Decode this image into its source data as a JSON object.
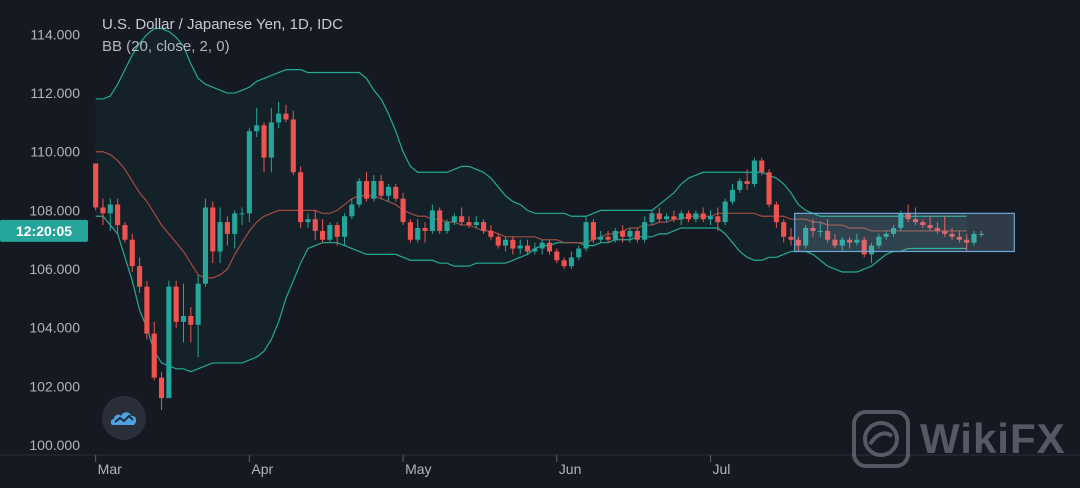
{
  "legend": {
    "title": "U.S. Dollar / Japanese Yen, 1D, IDC",
    "indicator": "BB (20, close, 2, 0)"
  },
  "price_label": "12:20:05",
  "watermark": {
    "text": "WikiFX",
    "icon": "wikifx-logo-icon"
  },
  "logo_icon": "tradingview-cloud-icon",
  "colors": {
    "background": "#151922",
    "up": "#26a69a",
    "down": "#ef5350",
    "band": "#22ab94",
    "basis": "#a24c3f",
    "band_fill": "rgba(34,171,148,0.06)",
    "rect_fill": "rgba(140,185,210,0.22)",
    "rect_stroke": "#6ea8d8",
    "axis_text": "#b2b5be",
    "price_label_bg": "#26a69a"
  },
  "chart_data": {
    "type": "candlestick",
    "title": "U.S. Dollar / Japanese Yen, 1D, IDC",
    "y_ticks": [
      "114.000",
      "112.000",
      "110.000",
      "108.000",
      "106.000",
      "104.000",
      "102.000",
      "100.000"
    ],
    "ylim": [
      99.9,
      114.9
    ],
    "x_labels": [
      "Mar",
      "Apr",
      "May",
      "Jun",
      "Jul"
    ],
    "x_label_index": [
      0,
      21,
      42,
      63,
      84
    ],
    "grid": false,
    "candles": [
      [
        109.6,
        109.6,
        108.0,
        108.1
      ],
      [
        108.1,
        108.4,
        107.5,
        107.9
      ],
      [
        107.9,
        108.4,
        107.3,
        108.2
      ],
      [
        108.2,
        108.4,
        107.2,
        107.5
      ],
      [
        107.5,
        107.6,
        106.9,
        107.0
      ],
      [
        107.0,
        107.2,
        105.9,
        106.1
      ],
      [
        106.1,
        106.4,
        105.2,
        105.4
      ],
      [
        105.4,
        105.6,
        103.6,
        103.8
      ],
      [
        103.8,
        104.2,
        102.2,
        102.3
      ],
      [
        102.3,
        102.5,
        101.2,
        101.6
      ],
      [
        101.6,
        105.6,
        101.6,
        105.4
      ],
      [
        105.4,
        105.6,
        104.0,
        104.2
      ],
      [
        104.2,
        105.5,
        103.5,
        104.4
      ],
      [
        104.4,
        104.7,
        103.5,
        104.1
      ],
      [
        104.1,
        105.8,
        103.0,
        105.5
      ],
      [
        105.5,
        108.4,
        105.4,
        108.1
      ],
      [
        108.1,
        108.3,
        106.2,
        106.6
      ],
      [
        106.6,
        108.1,
        106.2,
        107.6
      ],
      [
        107.6,
        107.8,
        106.8,
        107.2
      ],
      [
        107.2,
        108.0,
        106.7,
        107.9
      ],
      [
        107.9,
        108.1,
        107.5,
        107.9
      ],
      [
        107.9,
        110.8,
        107.6,
        110.7
      ],
      [
        110.7,
        111.5,
        110.5,
        110.9
      ],
      [
        110.9,
        111.0,
        109.3,
        109.8
      ],
      [
        109.8,
        111.5,
        109.3,
        111.0
      ],
      [
        111.0,
        111.7,
        110.8,
        111.3
      ],
      [
        111.3,
        111.6,
        111.0,
        111.1
      ],
      [
        111.1,
        111.4,
        109.2,
        109.3
      ],
      [
        109.3,
        109.5,
        107.4,
        107.6
      ],
      [
        107.6,
        107.9,
        107.4,
        107.7
      ],
      [
        107.7,
        108.0,
        107.0,
        107.3
      ],
      [
        107.3,
        107.7,
        106.9,
        107.0
      ],
      [
        107.0,
        107.6,
        106.9,
        107.5
      ],
      [
        107.5,
        107.6,
        106.8,
        107.1
      ],
      [
        107.1,
        107.9,
        106.8,
        107.8
      ],
      [
        107.8,
        108.4,
        107.7,
        108.2
      ],
      [
        108.2,
        109.1,
        108.1,
        109.0
      ],
      [
        109.0,
        109.3,
        108.3,
        108.4
      ],
      [
        108.4,
        109.2,
        108.3,
        109.0
      ],
      [
        109.0,
        109.2,
        108.4,
        108.5
      ],
      [
        108.5,
        108.9,
        108.3,
        108.8
      ],
      [
        108.8,
        108.9,
        108.3,
        108.4
      ],
      [
        108.4,
        108.6,
        107.5,
        107.6
      ],
      [
        107.6,
        107.7,
        106.9,
        107.0
      ],
      [
        107.0,
        107.7,
        106.9,
        107.4
      ],
      [
        107.4,
        107.6,
        106.9,
        107.3
      ],
      [
        107.3,
        108.2,
        107.2,
        108.0
      ],
      [
        108.0,
        108.1,
        107.2,
        107.3
      ],
      [
        107.3,
        107.7,
        107.2,
        107.6
      ],
      [
        107.6,
        107.9,
        107.5,
        107.8
      ],
      [
        107.8,
        108.1,
        107.5,
        107.6
      ],
      [
        107.6,
        107.8,
        107.4,
        107.5
      ],
      [
        107.5,
        107.8,
        107.4,
        107.6
      ],
      [
        107.6,
        107.7,
        107.2,
        107.3
      ],
      [
        107.3,
        107.5,
        107.0,
        107.1
      ],
      [
        107.1,
        107.2,
        106.7,
        106.8
      ],
      [
        106.8,
        107.1,
        106.6,
        107.0
      ],
      [
        107.0,
        107.1,
        106.5,
        106.7
      ],
      [
        106.7,
        107.0,
        106.5,
        106.8
      ],
      [
        106.8,
        107.0,
        106.5,
        106.6
      ],
      [
        106.6,
        106.9,
        106.5,
        106.7
      ],
      [
        106.7,
        107.0,
        106.5,
        106.9
      ],
      [
        106.9,
        107.0,
        106.5,
        106.6
      ],
      [
        106.6,
        106.7,
        106.2,
        106.3
      ],
      [
        106.3,
        106.4,
        106.0,
        106.1
      ],
      [
        106.1,
        106.6,
        106.0,
        106.4
      ],
      [
        106.4,
        106.8,
        106.3,
        106.7
      ],
      [
        106.7,
        107.8,
        106.6,
        107.6
      ],
      [
        107.6,
        107.7,
        106.9,
        107.0
      ],
      [
        107.0,
        107.3,
        106.9,
        107.1
      ],
      [
        107.1,
        107.3,
        106.9,
        107.0
      ],
      [
        107.0,
        107.4,
        106.9,
        107.3
      ],
      [
        107.3,
        107.5,
        106.9,
        107.1
      ],
      [
        107.1,
        107.4,
        106.9,
        107.3
      ],
      [
        107.3,
        107.4,
        106.9,
        107.0
      ],
      [
        107.0,
        107.8,
        106.9,
        107.6
      ],
      [
        107.6,
        108.0,
        107.5,
        107.9
      ],
      [
        107.9,
        108.1,
        107.6,
        107.7
      ],
      [
        107.7,
        107.9,
        107.6,
        107.8
      ],
      [
        107.8,
        108.0,
        107.6,
        107.7
      ],
      [
        107.7,
        108.0,
        107.5,
        107.9
      ],
      [
        107.9,
        108.0,
        107.6,
        107.7
      ],
      [
        107.7,
        108.0,
        107.6,
        107.9
      ],
      [
        107.9,
        108.1,
        107.6,
        107.7
      ],
      [
        107.7,
        108.0,
        107.5,
        107.8
      ],
      [
        107.8,
        108.1,
        107.3,
        107.6
      ],
      [
        107.6,
        108.4,
        107.5,
        108.3
      ],
      [
        108.3,
        108.9,
        108.2,
        108.7
      ],
      [
        108.7,
        109.1,
        108.6,
        109.0
      ],
      [
        109.0,
        109.4,
        108.7,
        108.9
      ],
      [
        108.9,
        109.8,
        108.8,
        109.7
      ],
      [
        109.7,
        109.8,
        109.2,
        109.3
      ],
      [
        109.3,
        109.4,
        108.1,
        108.2
      ],
      [
        108.2,
        108.3,
        107.4,
        107.6
      ],
      [
        107.6,
        107.7,
        106.9,
        107.1
      ],
      [
        107.1,
        107.4,
        106.8,
        107.0
      ],
      [
        107.0,
        107.1,
        106.6,
        106.8
      ],
      [
        106.8,
        107.5,
        106.7,
        107.4
      ],
      [
        107.4,
        107.7,
        107.1,
        107.3
      ],
      [
        107.3,
        107.6,
        107.1,
        107.3
      ],
      [
        107.3,
        107.7,
        106.9,
        107.0
      ],
      [
        107.0,
        107.2,
        106.7,
        106.8
      ],
      [
        106.8,
        107.1,
        106.6,
        107.0
      ],
      [
        107.0,
        107.1,
        106.7,
        106.9
      ],
      [
        106.9,
        107.2,
        106.8,
        107.0
      ],
      [
        107.0,
        107.1,
        106.4,
        106.5
      ],
      [
        106.5,
        106.9,
        106.2,
        106.8
      ],
      [
        106.8,
        107.2,
        106.7,
        107.1
      ],
      [
        107.1,
        107.3,
        107.0,
        107.2
      ],
      [
        107.2,
        107.5,
        107.1,
        107.4
      ],
      [
        107.4,
        108.0,
        107.3,
        107.9
      ],
      [
        107.9,
        108.2,
        107.6,
        107.7
      ],
      [
        107.7,
        108.1,
        107.5,
        107.6
      ],
      [
        107.6,
        107.7,
        107.4,
        107.5
      ],
      [
        107.5,
        107.8,
        107.3,
        107.4
      ],
      [
        107.4,
        107.6,
        107.2,
        107.3
      ],
      [
        107.3,
        107.8,
        107.1,
        107.2
      ],
      [
        107.2,
        107.4,
        107.0,
        107.1
      ],
      [
        107.1,
        107.3,
        106.9,
        107.0
      ],
      [
        107.0,
        107.2,
        106.6,
        106.9
      ],
      [
        106.9,
        107.3,
        106.8,
        107.2
      ],
      [
        107.2,
        107.3,
        107.1,
        107.2
      ]
    ],
    "bollinger": {
      "period": 20,
      "stddev": 2,
      "upper": [
        111.8,
        111.8,
        111.9,
        112.3,
        112.8,
        113.3,
        113.7,
        114.0,
        114.2,
        114.2,
        114.1,
        113.9,
        113.6,
        113.0,
        112.5,
        112.3,
        112.2,
        112.1,
        112.0,
        112.0,
        112.1,
        112.2,
        112.4,
        112.5,
        112.6,
        112.7,
        112.8,
        112.8,
        112.8,
        112.7,
        112.7,
        112.7,
        112.7,
        112.7,
        112.7,
        112.7,
        112.7,
        112.5,
        112.1,
        111.8,
        111.3,
        110.7,
        110.0,
        109.5,
        109.3,
        109.3,
        109.3,
        109.3,
        109.3,
        109.4,
        109.5,
        109.5,
        109.4,
        109.3,
        109.1,
        108.8,
        108.5,
        108.3,
        108.2,
        108.0,
        107.9,
        107.9,
        107.9,
        107.9,
        107.9,
        107.8,
        107.8,
        107.8,
        107.9,
        108.0,
        108.0,
        108.0,
        108.0,
        108.0,
        108.0,
        108.0,
        108.0,
        108.2,
        108.4,
        108.6,
        108.9,
        109.1,
        109.2,
        109.3,
        109.3,
        109.3,
        109.3,
        109.3,
        109.3,
        109.3,
        109.3,
        109.3,
        109.2,
        109.1,
        108.9,
        108.6,
        108.2,
        108.0,
        107.9,
        107.8,
        107.8,
        107.8,
        107.8,
        107.8,
        107.8,
        107.8,
        107.8,
        107.8,
        107.8,
        107.8,
        107.8,
        107.8,
        107.8,
        107.8,
        107.8,
        107.8,
        107.8,
        107.8,
        107.8,
        107.8
      ],
      "basis": [
        110.0,
        110.0,
        109.9,
        109.7,
        109.4,
        109.0,
        108.6,
        108.3,
        107.9,
        107.5,
        107.2,
        106.9,
        106.6,
        106.2,
        105.8,
        105.7,
        105.7,
        105.8,
        106.0,
        106.5,
        106.9,
        107.3,
        107.6,
        107.8,
        107.9,
        108.0,
        108.0,
        108.0,
        108.0,
        108.0,
        108.0,
        107.9,
        107.9,
        108.0,
        108.2,
        108.4,
        108.5,
        108.5,
        108.5,
        108.4,
        108.3,
        108.2,
        108.0,
        107.9,
        107.8,
        107.8,
        107.7,
        107.7,
        107.6,
        107.6,
        107.5,
        107.5,
        107.4,
        107.3,
        107.3,
        107.2,
        107.1,
        107.1,
        107.1,
        107.1,
        107.1,
        107.0,
        107.0,
        107.0,
        106.9,
        106.9,
        106.9,
        106.9,
        107.0,
        107.1,
        107.2,
        107.2,
        107.3,
        107.4,
        107.4,
        107.5,
        107.5,
        107.6,
        107.6,
        107.7,
        107.7,
        107.8,
        107.8,
        107.8,
        107.8,
        107.9,
        107.9,
        107.9,
        107.9,
        107.9,
        107.9,
        107.8,
        107.8,
        107.8,
        107.8,
        107.7,
        107.7,
        107.7,
        107.6,
        107.6,
        107.5,
        107.5,
        107.5,
        107.4,
        107.4,
        107.4,
        107.3,
        107.3,
        107.3,
        107.3,
        107.3,
        107.3,
        107.3,
        107.3,
        107.3,
        107.3,
        107.3,
        107.3,
        107.3,
        107.3
      ],
      "lower": [
        107.8,
        107.8,
        107.5,
        107.2,
        106.4,
        105.6,
        104.6,
        104.0,
        103.2,
        102.8,
        102.7,
        102.6,
        102.6,
        102.5,
        102.6,
        102.7,
        102.8,
        102.8,
        102.8,
        102.8,
        102.8,
        102.9,
        103.0,
        103.2,
        103.6,
        104.2,
        105.0,
        105.6,
        106.2,
        106.7,
        106.8,
        106.9,
        106.9,
        106.9,
        106.8,
        106.7,
        106.6,
        106.5,
        106.5,
        106.5,
        106.5,
        106.5,
        106.4,
        106.3,
        106.3,
        106.3,
        106.3,
        106.2,
        106.2,
        106.1,
        106.1,
        106.1,
        106.2,
        106.2,
        106.2,
        106.2,
        106.2,
        106.3,
        106.4,
        106.5,
        106.7,
        106.8,
        106.8,
        106.9,
        106.9,
        106.9,
        106.9,
        106.8,
        106.8,
        106.9,
        106.9,
        107.0,
        107.0,
        107.0,
        107.1,
        107.1,
        107.1,
        107.2,
        107.2,
        107.3,
        107.4,
        107.4,
        107.4,
        107.4,
        107.4,
        107.4,
        107.2,
        106.9,
        106.6,
        106.4,
        106.3,
        106.3,
        106.4,
        106.4,
        106.5,
        106.6,
        106.6,
        106.6,
        106.5,
        106.3,
        106.1,
        106.0,
        105.9,
        105.9,
        105.9,
        106.0,
        106.1,
        106.3,
        106.5,
        106.6,
        106.6,
        106.7,
        106.7,
        106.7,
        106.7,
        106.7,
        106.7,
        106.7,
        106.7,
        106.7
      ]
    },
    "highlight_range": {
      "start_index": 96,
      "end_index": 125,
      "y_top": 107.9,
      "y_bottom": 106.6
    },
    "current_price": 107.3
  }
}
